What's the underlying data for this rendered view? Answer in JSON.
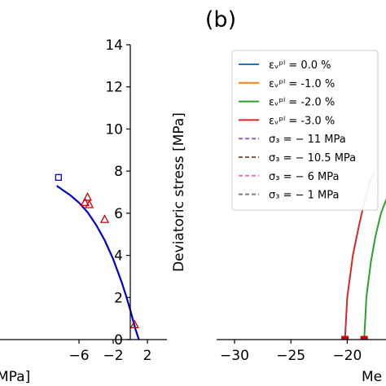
{
  "panel_label": "(b)",
  "chart_data": [
    {
      "type": "line",
      "panel": "left (cropped)",
      "ylabel": "Deviatoric stress [MPa]",
      "xlabel_fragment": "MPa]",
      "xlim": [
        -8.6,
        2
      ],
      "ylim": [
        0,
        14
      ],
      "xticks": [
        -6,
        -2,
        2
      ],
      "xtick_labels": [
        "−6",
        "−2",
        "2"
      ],
      "yticks": [
        0,
        2,
        4,
        6,
        8,
        10,
        12,
        14
      ],
      "ytick_labels": [
        "0",
        "2",
        "4",
        "6",
        "8",
        "10",
        "12",
        "14"
      ],
      "series": [
        {
          "kind": "line",
          "color": "#0000c8",
          "x": [
            -8.6,
            -8.0,
            -7.0,
            -6.0,
            -5.0,
            -4.0,
            -3.0,
            -2.0,
            -1.0,
            -0.5,
            0.0,
            0.4,
            0.6,
            0.8,
            0.95,
            1.0
          ],
          "y": [
            7.3,
            7.13,
            6.85,
            6.5,
            6.05,
            5.45,
            4.72,
            3.82,
            2.72,
            2.08,
            1.4,
            0.8,
            0.5,
            0.25,
            0.07,
            0.0
          ]
        },
        {
          "kind": "markers",
          "marker": "triangle",
          "color": "#cc0000",
          "x": [
            -5.3,
            -5.0,
            -4.8,
            -3.0,
            0.5
          ],
          "y": [
            6.5,
            6.75,
            6.4,
            5.7,
            0.7
          ]
        },
        {
          "kind": "markers",
          "marker": "square",
          "color": "#0000c8",
          "x": [
            -8.4
          ],
          "y": [
            7.7
          ]
        }
      ]
    },
    {
      "type": "line",
      "panel": "right (cropped)",
      "xlabel_fragment": "Me",
      "xlim": [
        -31,
        -15
      ],
      "xticks": [
        -30,
        -25,
        -20
      ],
      "xtick_labels": [
        "−30",
        "−25",
        "−20"
      ],
      "legend_placement": "top-left",
      "legend": [
        {
          "label": "εᵥᵖˡ =  0.0 %",
          "color": "#1f77b4",
          "style": "solid"
        },
        {
          "label": "εᵥᵖˡ =  -1.0 %",
          "color": "#ff7f0e",
          "style": "solid"
        },
        {
          "label": "εᵥᵖˡ =  -2.0 %",
          "color": "#2ca02c",
          "style": "solid"
        },
        {
          "label": "εᵥᵖˡ =  -3.0 %",
          "color": "#d62728",
          "style": "solid"
        },
        {
          "label": "σ₃ = − 11 MPa",
          "color": "#9467bd",
          "style": "dashed"
        },
        {
          "label": "σ₃ = − 10.5 MPa",
          "color": "#8c564b",
          "style": "dashed"
        },
        {
          "label": "σ₃ = − 6 MPa",
          "color": "#e377c2",
          "style": "dashed"
        },
        {
          "label": "σ₃ = − 1 MPa",
          "color": "#7f7f7f",
          "style": "dashed"
        }
      ],
      "series": [
        {
          "kind": "line",
          "color": "#d62728",
          "x": [
            -20.2,
            -20.0,
            -19.5,
            -19.0,
            -18.5,
            -18.0,
            -17.6
          ],
          "y": [
            0,
            2.0,
            4.0,
            5.3,
            6.5,
            7.5,
            7.9
          ]
        },
        {
          "kind": "line",
          "color": "#2ca02c",
          "x": [
            -18.5,
            -18.3,
            -17.9,
            -17.5,
            -17.0,
            -16.5,
            -16.1
          ],
          "y": [
            0,
            2.0,
            3.7,
            4.9,
            6.0,
            6.7,
            7.0
          ]
        },
        {
          "kind": "markers",
          "marker": "square",
          "color": "#cc0000",
          "x": [
            -20.2,
            -18.5
          ],
          "y": [
            0,
            0
          ]
        }
      ]
    }
  ]
}
